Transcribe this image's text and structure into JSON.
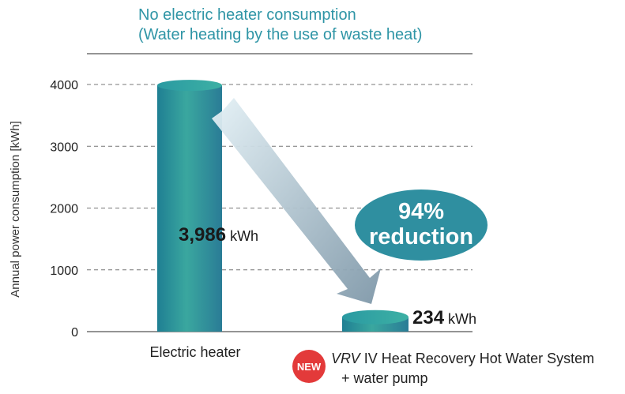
{
  "annotation": {
    "line1": "No electric heater consumption",
    "line2": "(Water heating by the use of waste heat)"
  },
  "badge": {
    "text": "NEW",
    "color": "#e33a3a"
  },
  "reduction": {
    "line1": "94%",
    "line2": "reduction",
    "color": "#2f8fa0"
  },
  "colors": {
    "bar": "#2d8fa0",
    "accent_text": "#2f95a6"
  },
  "chart_data": {
    "type": "bar",
    "categories": [
      "Electric heater",
      "VRV IV Heat Recovery Hot Water System + water pump"
    ],
    "category_label_parts": {
      "first": "Electric heater",
      "second_italic": "VRV",
      "second_rest": " IV Heat Recovery Hot Water System",
      "second_line2": "+ water pump"
    },
    "values": [
      3986,
      234
    ],
    "value_labels": [
      {
        "number": "3,986",
        "unit": "kWh"
      },
      {
        "number": "234",
        "unit": "kWh"
      }
    ],
    "ylabel": "Annual power consumption [kWh]",
    "ylim": [
      0,
      4000
    ],
    "yticks": [
      0,
      1000,
      2000,
      3000,
      4000
    ],
    "grid": true,
    "grid_style": "dashed"
  }
}
